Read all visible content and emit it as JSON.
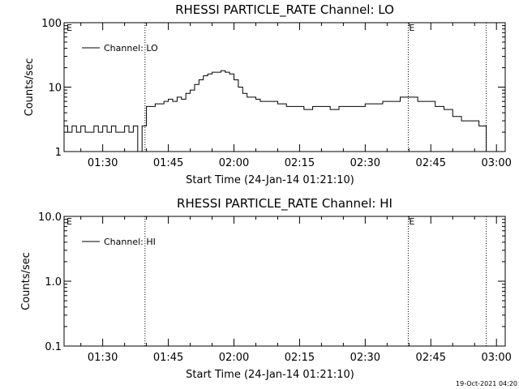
{
  "chart_data": [
    {
      "type": "line",
      "title": "RHESSI PARTICLE_RATE Channel: LO",
      "xlabel": "Start Time (24-Jan-14 01:21:10)",
      "ylabel": "Counts/sec",
      "yscale": "log",
      "ylim": [
        1,
        100
      ],
      "yticks": [
        1,
        10,
        100
      ],
      "ytick_labels": [
        "1",
        "10",
        "100"
      ],
      "xlim": [
        "01:21:10",
        "03:02:00"
      ],
      "xticks": [
        "01:30",
        "01:45",
        "02:00",
        "02:15",
        "02:30",
        "02:45",
        "03:00"
      ],
      "event_lines": [
        {
          "x": "01:39:40",
          "marker": ""
        },
        {
          "x": "02:39:50",
          "marker": "E"
        },
        {
          "x": "02:57:40",
          "marker": ""
        }
      ],
      "corner_marker": "E",
      "legend": {
        "label": "Channel: LO",
        "position": "top-left"
      },
      "series": [
        {
          "name": "Channel: LO",
          "x": [
            "01:21:10",
            "01:22",
            "01:23",
            "01:24",
            "01:25",
            "01:26",
            "01:27",
            "01:28",
            "01:29",
            "01:30",
            "01:31",
            "01:32",
            "01:33",
            "01:34",
            "01:35",
            "01:36",
            "01:37",
            "01:38",
            "01:39",
            "01:39:40",
            "01:40",
            "01:41",
            "01:42",
            "01:43",
            "01:44",
            "01:45",
            "01:46",
            "01:47",
            "01:48",
            "01:49",
            "01:50",
            "01:51",
            "01:52",
            "01:53",
            "01:54",
            "01:55",
            "01:56",
            "01:57",
            "01:58",
            "01:59",
            "02:00",
            "02:01",
            "02:02",
            "02:03",
            "02:04",
            "02:05",
            "02:06",
            "02:08",
            "02:10",
            "02:12",
            "02:14",
            "02:16",
            "02:18",
            "02:20",
            "02:22",
            "02:24",
            "02:26",
            "02:28",
            "02:30",
            "02:32",
            "02:34",
            "02:36",
            "02:38",
            "02:40",
            "02:42",
            "02:44",
            "02:46",
            "02:48",
            "02:50",
            "02:52",
            "02:54",
            "02:56",
            "02:57",
            "02:57:40"
          ],
          "y": [
            2.5,
            2,
            2.5,
            2,
            2.5,
            2,
            2,
            2.5,
            2,
            2.5,
            2,
            2.5,
            2,
            2,
            2.5,
            2,
            2.5,
            1,
            2.5,
            2.5,
            5,
            5,
            5.5,
            5.5,
            6,
            6.5,
            6,
            7,
            6.5,
            8,
            9,
            11,
            13,
            15,
            16,
            17,
            17,
            18,
            17,
            16,
            13,
            10,
            8,
            7,
            7,
            6.5,
            6,
            6,
            5.5,
            5,
            5,
            4.5,
            5,
            5,
            4.5,
            5,
            5,
            5,
            5.5,
            5.5,
            6,
            6,
            7,
            7,
            6,
            6,
            5,
            4.5,
            3.5,
            3,
            3,
            2.5,
            2.5,
            1
          ]
        }
      ]
    },
    {
      "type": "line",
      "title": "RHESSI PARTICLE_RATE Channel: HI",
      "xlabel": "Start Time (24-Jan-14 01:21:10)",
      "ylabel": "Counts/sec",
      "yscale": "log",
      "ylim": [
        0.1,
        10
      ],
      "yticks": [
        0.1,
        1,
        10
      ],
      "ytick_labels": [
        "0.1",
        "1.0",
        "10.0"
      ],
      "xlim": [
        "01:21:10",
        "03:02:00"
      ],
      "xticks": [
        "01:30",
        "01:45",
        "02:00",
        "02:15",
        "02:30",
        "02:45",
        "03:00"
      ],
      "event_lines": [
        {
          "x": "01:39:40",
          "marker": ""
        },
        {
          "x": "02:39:50",
          "marker": "E"
        },
        {
          "x": "02:57:40",
          "marker": ""
        }
      ],
      "corner_marker": "E",
      "legend": {
        "label": "Channel: HI",
        "position": "top-left"
      },
      "series": [
        {
          "name": "Channel: HI",
          "x": [],
          "y": []
        }
      ]
    }
  ],
  "footer": {
    "timestamp": "19-Oct-2021 04:20"
  }
}
